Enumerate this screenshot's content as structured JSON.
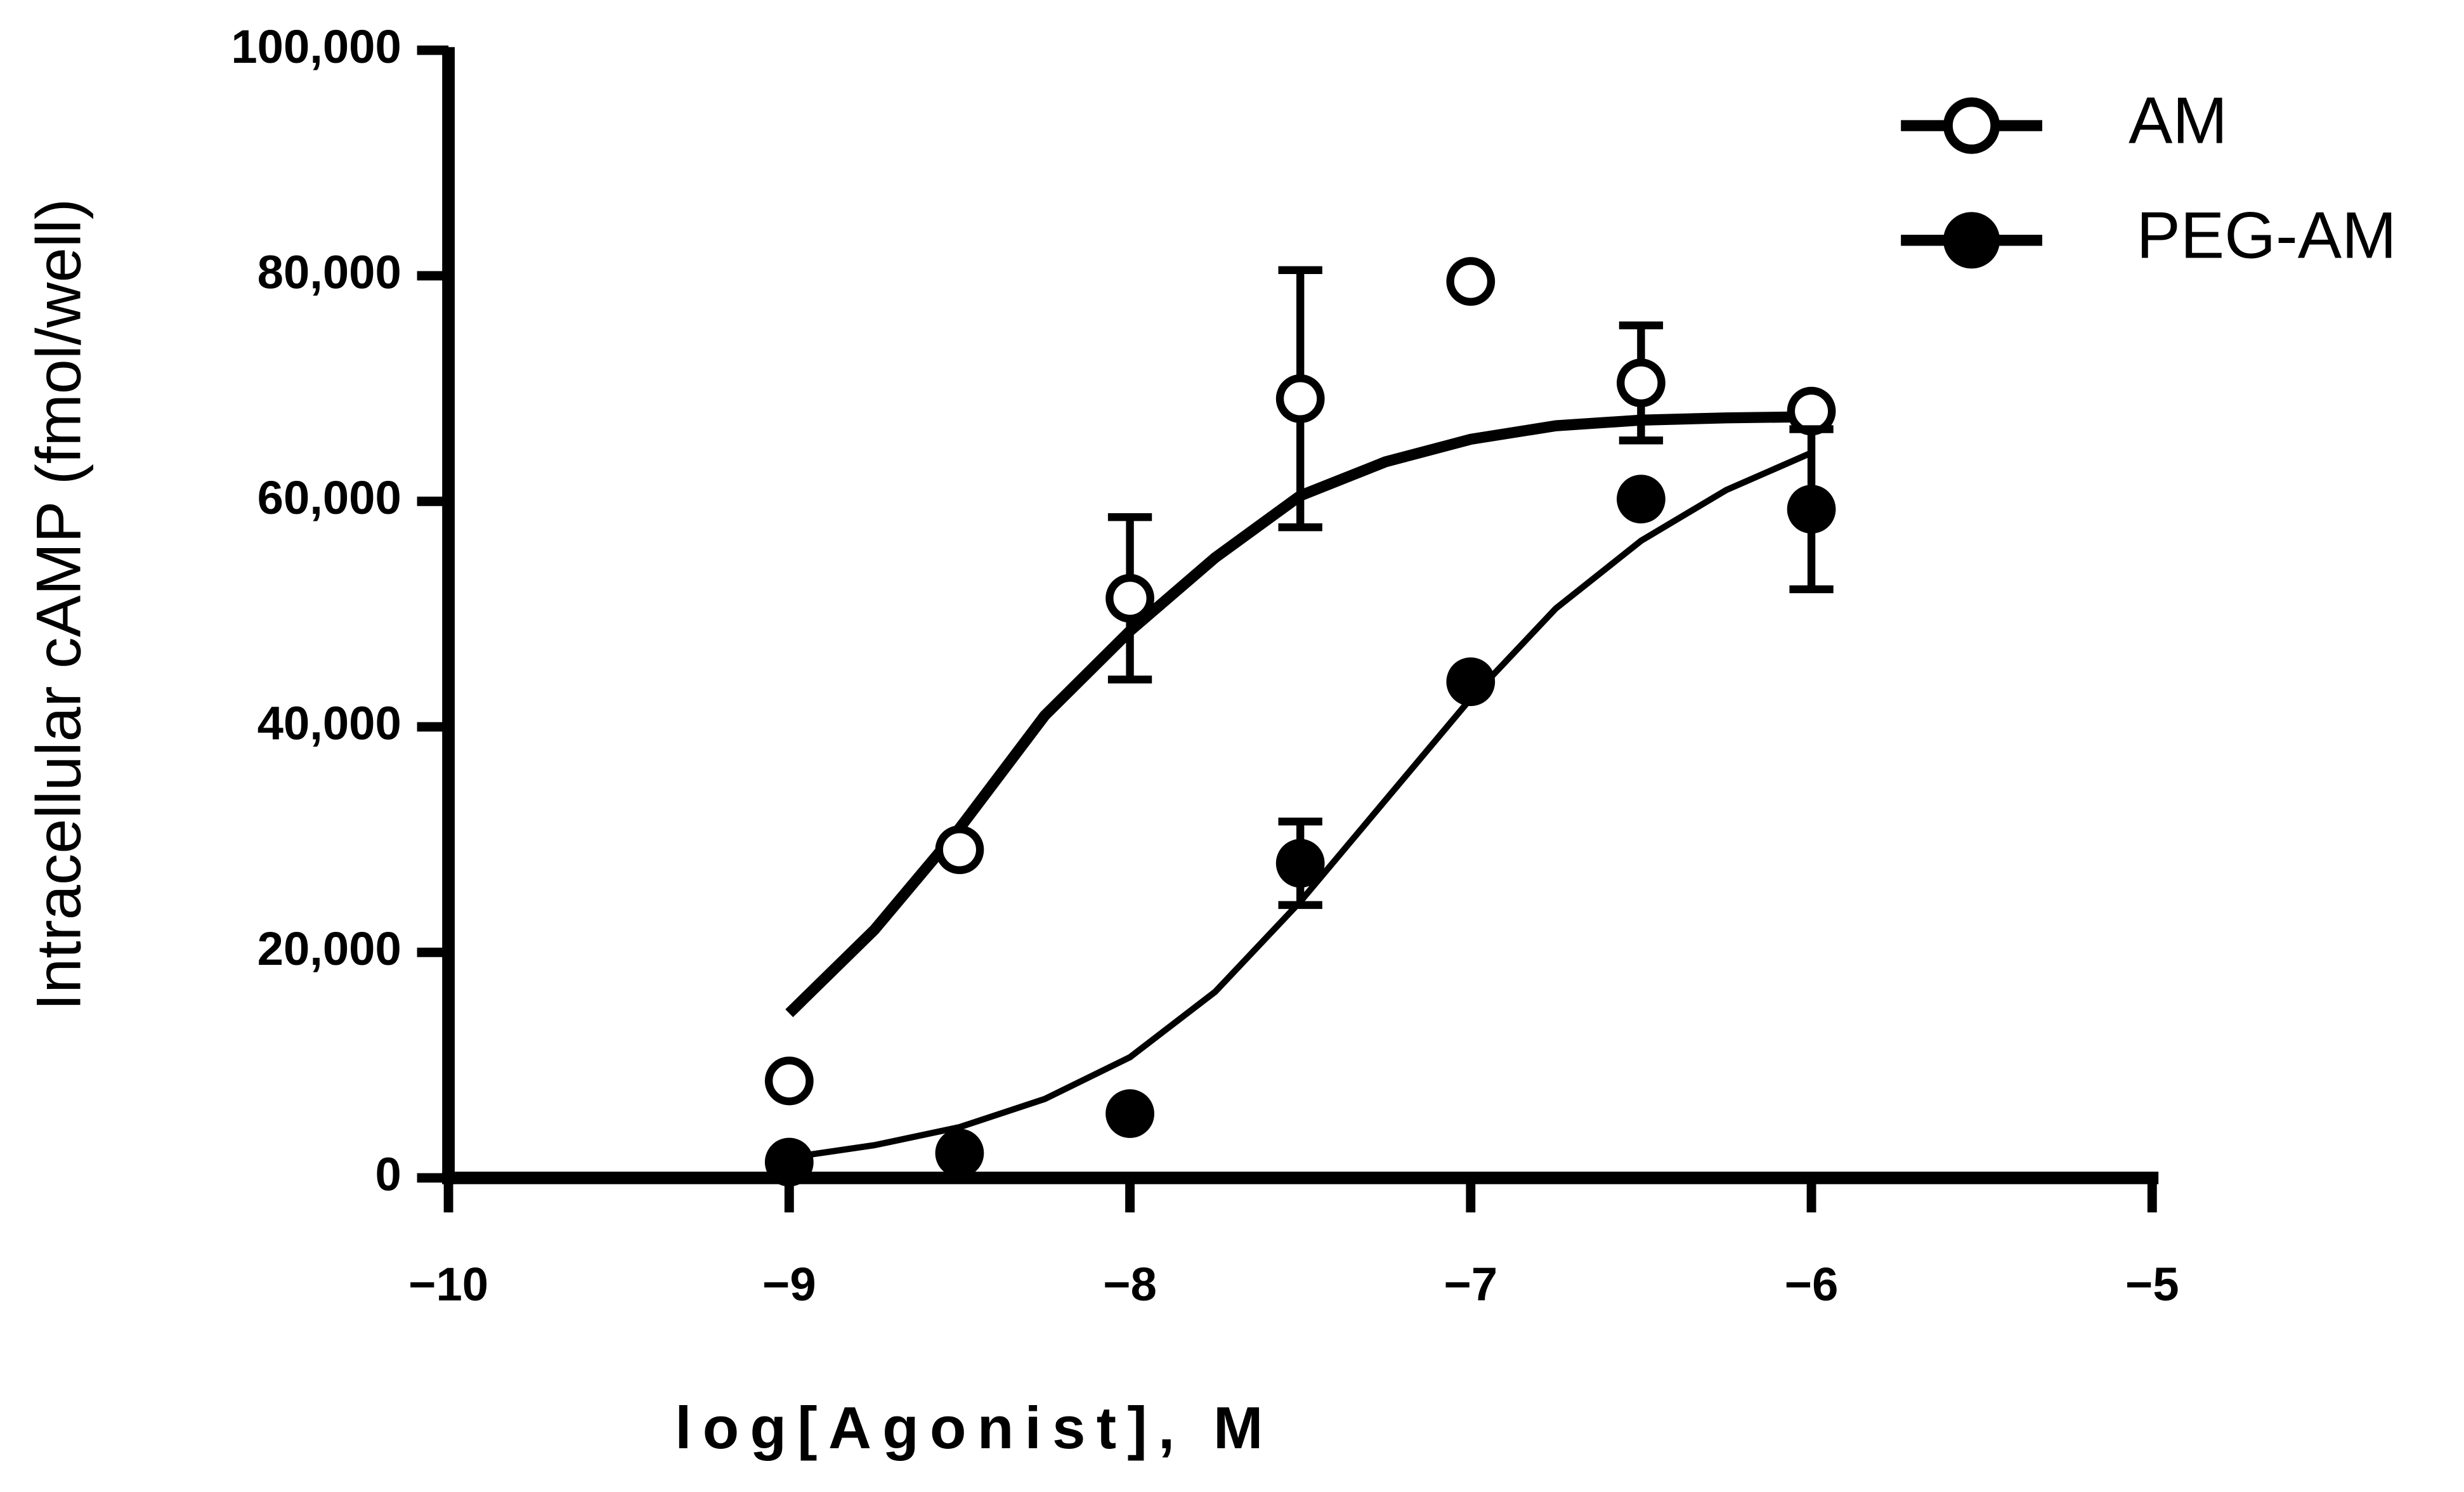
{
  "chart_data": {
    "type": "scatter",
    "x_label": "log[Agonist], M",
    "y_label": "Intracellular cAMP (fmol/well)",
    "xlim": [
      -10,
      -5
    ],
    "xticks": [
      {
        "value": -10,
        "label": "−10"
      },
      {
        "value": -9,
        "label": "−9"
      },
      {
        "value": -8,
        "label": "−8"
      },
      {
        "value": -7,
        "label": "−7"
      },
      {
        "value": -6,
        "label": "−6"
      },
      {
        "value": -5,
        "label": "−5"
      }
    ],
    "ylim": [
      0,
      100000
    ],
    "yticks": [
      0,
      {
        "value": 20000,
        "label": "20,000"
      },
      {
        "value": 40000,
        "label": "40,000"
      },
      {
        "value": 60000,
        "label": "60,000"
      },
      {
        "value": 80000,
        "label": "80,000"
      },
      {
        "value": 100000,
        "label": "100,000"
      }
    ],
    "legend": "top-right",
    "series": [
      {
        "name": "AM",
        "color": "#000000",
        "filled": false,
        "x": [
          -9,
          -8.5,
          -8,
          -7.5,
          -7,
          -6.5,
          -6
        ],
        "values": [
          8600,
          29100,
          51400,
          69100,
          79500,
          70500,
          68000
        ],
        "errors": [
          null,
          null,
          7200,
          11400,
          null,
          5100,
          null
        ],
        "fit_x": [
          -9,
          -8.75,
          -8.5,
          -8.25,
          -8,
          -7.75,
          -7.5,
          -7.25,
          -7,
          -6.75,
          -6.5,
          -6.25,
          -6
        ],
        "fit_values": [
          14600,
          22000,
          31000,
          41000,
          48500,
          55000,
          60500,
          63500,
          65500,
          66700,
          67200,
          67400,
          67500
        ]
      },
      {
        "name": "PEG-AM",
        "color": "#000000",
        "filled": true,
        "x": [
          -9,
          -8.5,
          -8,
          -7.5,
          -7,
          -6.5,
          -6
        ],
        "values": [
          1400,
          2200,
          5700,
          27900,
          44000,
          60200,
          59300
        ],
        "errors": [
          null,
          null,
          null,
          3700,
          null,
          null,
          7100
        ],
        "fit_x": [
          -9,
          -8.75,
          -8.5,
          -8.25,
          -8,
          -7.75,
          -7.5,
          -7.25,
          -7,
          -6.75,
          -6.5,
          -6.25,
          -6
        ],
        "fit_values": [
          1800,
          2900,
          4500,
          7000,
          10700,
          16500,
          24500,
          33500,
          42500,
          50500,
          56500,
          61000,
          64300
        ]
      }
    ]
  }
}
